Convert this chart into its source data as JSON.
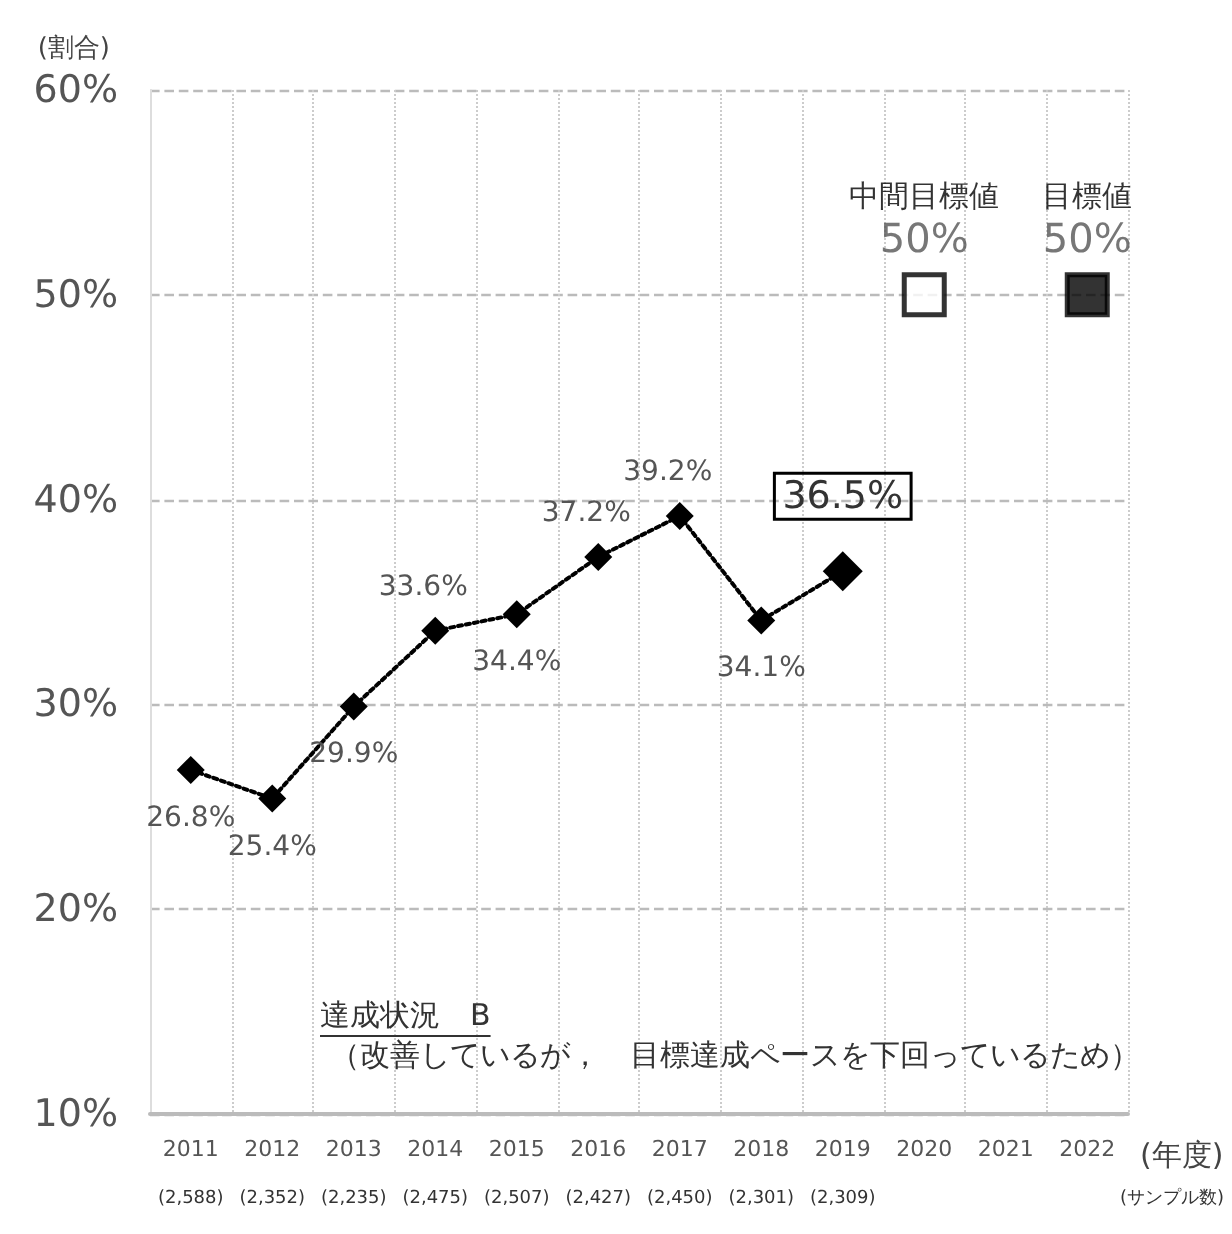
{
  "chart_data": {
    "type": "line",
    "ylabel": "(割合)",
    "xlabel": "(年度)",
    "categories": [
      "2011",
      "2012",
      "2013",
      "2014",
      "2015",
      "2016",
      "2017",
      "2018",
      "2019",
      "2020",
      "2021",
      "2022"
    ],
    "series": [
      {
        "color": "#000000",
        "values": [
          26.8,
          25.4,
          29.9,
          33.6,
          34.4,
          37.2,
          39.2,
          34.1,
          36.5,
          null,
          null,
          null
        ],
        "value_labels": [
          "26.8%",
          "25.4%",
          "29.9%",
          "33.6%",
          "34.4%",
          "37.2%",
          "39.2%",
          "34.1%",
          "36.5%",
          null,
          null,
          null
        ],
        "marker": "diamond",
        "line_style": "dotted"
      },
      {
        "type": "scatter",
        "name": "中間目標値",
        "color": "#ffffff",
        "values": [
          null,
          null,
          null,
          null,
          null,
          null,
          null,
          null,
          null,
          50,
          null,
          null
        ],
        "value_labels": [
          null,
          null,
          null,
          null,
          null,
          null,
          null,
          null,
          null,
          "50%",
          null,
          null
        ],
        "marker": "square"
      },
      {
        "type": "scatter",
        "name": "目標値",
        "color": "#000000",
        "values": [
          null,
          null,
          null,
          null,
          null,
          null,
          null,
          null,
          null,
          null,
          null,
          50
        ],
        "value_labels": [
          null,
          null,
          null,
          null,
          null,
          null,
          null,
          null,
          null,
          null,
          null,
          "50%"
        ],
        "marker": "square"
      }
    ],
    "ylim": [
      10,
      60
    ],
    "yticks": [
      {
        "value": 10,
        "label": "10%"
      },
      {
        "value": 20,
        "label": "20%"
      },
      {
        "value": 30,
        "label": "30%"
      },
      {
        "value": 40,
        "label": "40%"
      },
      {
        "value": 50,
        "label": "50%"
      },
      {
        "value": 60,
        "label": "60%"
      }
    ],
    "grid": true,
    "legend": false,
    "annotations": [
      "達成状況　B",
      "（改善しているが，　目標達成ペースを下回っているため）",
      "(サンプル数)",
      "(2,588)",
      "(2,352)",
      "(2,235)",
      "(2,475)",
      "(2,507)",
      "(2,427)",
      "(2,450)",
      "(2,301)",
      "(2,309)"
    ]
  }
}
